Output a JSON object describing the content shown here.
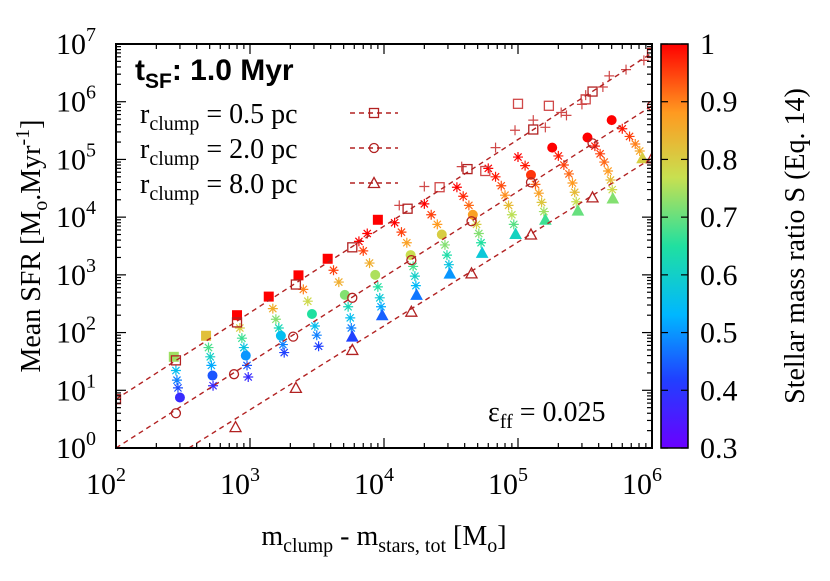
{
  "chart_data": {
    "type": "scatter",
    "annotation_title": "t",
    "annotation_title_sub": "SF",
    "annotation_title_rest": ": 1.0 Myr",
    "annotation_eff": "ε",
    "annotation_eff_sub": "ff",
    "annotation_eff_rest": " = 0.025",
    "xlabel_main": "m",
    "xlabel_sub1": "clump",
    "xlabel_mid": " - m",
    "xlabel_sub2": "stars, tot",
    "xlabel_end": " [M",
    "xlabel_sub3": "o",
    "xlabel_close": "]",
    "ylabel_main": "Mean SFR [M",
    "ylabel_sub": "o",
    "ylabel_mid": ".Myr",
    "ylabel_sup": "-1",
    "ylabel_close": "]",
    "colorbar_label": "Stellar mass ratio S (Eq. 14)",
    "xscale": "log",
    "yscale": "log",
    "xlim": [
      100,
      1000000
    ],
    "ylim": [
      1,
      10000000
    ],
    "colorbar_range": [
      0.3,
      1.0
    ],
    "x_tick_labels": [
      {
        "base": "10",
        "exp": "2"
      },
      {
        "base": "10",
        "exp": "3"
      },
      {
        "base": "10",
        "exp": "4"
      },
      {
        "base": "10",
        "exp": "5"
      },
      {
        "base": "10",
        "exp": "6"
      }
    ],
    "y_tick_labels": [
      {
        "base": "10",
        "exp": "0"
      },
      {
        "base": "10",
        "exp": "1"
      },
      {
        "base": "10",
        "exp": "2"
      },
      {
        "base": "10",
        "exp": "3"
      },
      {
        "base": "10",
        "exp": "4"
      },
      {
        "base": "10",
        "exp": "5"
      },
      {
        "base": "10",
        "exp": "6"
      },
      {
        "base": "10",
        "exp": "7"
      }
    ],
    "colorbar_ticks": [
      "0.3",
      "0.4",
      "0.5",
      "0.6",
      "0.7",
      "0.8",
      "0.9",
      "1"
    ],
    "series": [
      {
        "name": "r",
        "name_sub": "clump",
        "name_rest": " = 0.5 pc",
        "marker": "square",
        "color": "#b22222",
        "line_points": [
          [
            100,
            7
          ],
          [
            1000000,
            7000000
          ]
        ],
        "open_points": [
          [
            100,
            7
          ],
          [
            280,
            33
          ],
          [
            800,
            150
          ],
          [
            2200,
            680
          ],
          [
            5800,
            3000
          ],
          [
            15000,
            14000
          ],
          [
            42000,
            68000
          ],
          [
            130000,
            330000
          ],
          [
            360000,
            1500000
          ],
          [
            1000000,
            7000000
          ]
        ]
      },
      {
        "name": "r",
        "name_sub": "clump",
        "name_rest": " = 2.0 pc",
        "marker": "circle",
        "color": "#b22222",
        "line_points": [
          [
            100,
            1
          ],
          [
            1000000,
            850000
          ]
        ],
        "open_points": [
          [
            280,
            4
          ],
          [
            760,
            19
          ],
          [
            2100,
            85
          ],
          [
            5800,
            400
          ],
          [
            16000,
            1800
          ],
          [
            45000,
            8500
          ],
          [
            125000,
            40000
          ],
          [
            360000,
            190000
          ],
          [
            1000000,
            850000
          ]
        ]
      },
      {
        "name": "r",
        "name_sub": "clump",
        "name_rest": " = 8.0 pc",
        "marker": "triangle",
        "color": "#b22222",
        "line_points": [
          [
            350,
            1
          ],
          [
            1000000,
            105000
          ]
        ],
        "open_points": [
          [
            780,
            2.3
          ],
          [
            2200,
            11
          ],
          [
            5800,
            50
          ],
          [
            16000,
            230
          ],
          [
            45000,
            1060
          ],
          [
            125000,
            5000
          ],
          [
            360000,
            22000
          ],
          [
            1000000,
            105000
          ]
        ]
      }
    ],
    "colored_points": [
      {
        "x": 270,
        "y": 38,
        "s": 0.74,
        "m": "square"
      },
      {
        "x": 280,
        "y": 22,
        "s": 0.55,
        "m": "star"
      },
      {
        "x": 285,
        "y": 15,
        "s": 0.48,
        "m": "star"
      },
      {
        "x": 290,
        "y": 11,
        "s": 0.43,
        "m": "star"
      },
      {
        "x": 300,
        "y": 7.5,
        "s": 0.38,
        "m": "circle"
      },
      {
        "x": 470,
        "y": 88,
        "s": 0.82,
        "m": "square"
      },
      {
        "x": 490,
        "y": 55,
        "s": 0.68,
        "m": "star"
      },
      {
        "x": 505,
        "y": 38,
        "s": 0.6,
        "m": "star"
      },
      {
        "x": 515,
        "y": 27,
        "s": 0.52,
        "m": "star"
      },
      {
        "x": 525,
        "y": 18,
        "s": 0.44,
        "m": "circle"
      },
      {
        "x": 530,
        "y": 12,
        "s": 0.38,
        "m": "star"
      },
      {
        "x": 800,
        "y": 200,
        "s": 1.0,
        "m": "square"
      },
      {
        "x": 840,
        "y": 120,
        "s": 0.8,
        "m": "star"
      },
      {
        "x": 870,
        "y": 80,
        "s": 0.67,
        "m": "star"
      },
      {
        "x": 900,
        "y": 55,
        "s": 0.57,
        "m": "star"
      },
      {
        "x": 930,
        "y": 40,
        "s": 0.5,
        "m": "circle"
      },
      {
        "x": 950,
        "y": 27,
        "s": 0.44,
        "m": "star"
      },
      {
        "x": 970,
        "y": 17,
        "s": 0.38,
        "m": "star"
      },
      {
        "x": 1380,
        "y": 420,
        "s": 1.0,
        "m": "square"
      },
      {
        "x": 1480,
        "y": 260,
        "s": 0.85,
        "m": "star"
      },
      {
        "x": 1560,
        "y": 170,
        "s": 0.72,
        "m": "star"
      },
      {
        "x": 1640,
        "y": 120,
        "s": 0.62,
        "m": "star"
      },
      {
        "x": 1700,
        "y": 88,
        "s": 0.55,
        "m": "circle"
      },
      {
        "x": 1760,
        "y": 62,
        "s": 0.48,
        "m": "star"
      },
      {
        "x": 1800,
        "y": 45,
        "s": 0.42,
        "m": "star"
      },
      {
        "x": 2300,
        "y": 980,
        "s": 1.0,
        "m": "square"
      },
      {
        "x": 2500,
        "y": 560,
        "s": 0.9,
        "m": "star"
      },
      {
        "x": 2700,
        "y": 350,
        "s": 0.78,
        "m": "star"
      },
      {
        "x": 2900,
        "y": 210,
        "s": 0.65,
        "m": "circle"
      },
      {
        "x": 3050,
        "y": 130,
        "s": 0.55,
        "m": "star"
      },
      {
        "x": 3150,
        "y": 90,
        "s": 0.48,
        "m": "star"
      },
      {
        "x": 3250,
        "y": 58,
        "s": 0.42,
        "m": "star"
      },
      {
        "x": 3800,
        "y": 1900,
        "s": 1.0,
        "m": "square"
      },
      {
        "x": 4200,
        "y": 1200,
        "s": 0.95,
        "m": "star"
      },
      {
        "x": 4600,
        "y": 750,
        "s": 0.85,
        "m": "star"
      },
      {
        "x": 5100,
        "y": 450,
        "s": 0.72,
        "m": "circle"
      },
      {
        "x": 5400,
        "y": 280,
        "s": 0.62,
        "m": "star"
      },
      {
        "x": 5600,
        "y": 180,
        "s": 0.55,
        "m": "star"
      },
      {
        "x": 5700,
        "y": 120,
        "s": 0.48,
        "m": "star"
      },
      {
        "x": 5800,
        "y": 85,
        "s": 0.42,
        "m": "triangle"
      },
      {
        "x": 6500,
        "y": 3800,
        "s": 1.0,
        "m": "star"
      },
      {
        "x": 7500,
        "y": 5200,
        "s": 1.0,
        "m": "star"
      },
      {
        "x": 9000,
        "y": 9000,
        "s": 1.0,
        "m": "square"
      },
      {
        "x": 7000,
        "y": 2600,
        "s": 0.95,
        "m": "star"
      },
      {
        "x": 7800,
        "y": 1600,
        "s": 0.85,
        "m": "star"
      },
      {
        "x": 8600,
        "y": 1000,
        "s": 0.75,
        "m": "circle"
      },
      {
        "x": 9000,
        "y": 620,
        "s": 0.65,
        "m": "star"
      },
      {
        "x": 9300,
        "y": 400,
        "s": 0.58,
        "m": "star"
      },
      {
        "x": 9500,
        "y": 280,
        "s": 0.52,
        "m": "star"
      },
      {
        "x": 9700,
        "y": 200,
        "s": 0.45,
        "m": "triangle"
      },
      {
        "x": 12000,
        "y": 8000,
        "s": 1.0,
        "m": "star"
      },
      {
        "x": 13500,
        "y": 5500,
        "s": 0.95,
        "m": "star"
      },
      {
        "x": 14800,
        "y": 3600,
        "s": 0.87,
        "m": "star"
      },
      {
        "x": 15800,
        "y": 2200,
        "s": 0.77,
        "m": "circle"
      },
      {
        "x": 16500,
        "y": 1400,
        "s": 0.68,
        "m": "star"
      },
      {
        "x": 17000,
        "y": 950,
        "s": 0.6,
        "m": "star"
      },
      {
        "x": 17300,
        "y": 650,
        "s": 0.54,
        "m": "star"
      },
      {
        "x": 17500,
        "y": 450,
        "s": 0.47,
        "m": "triangle"
      },
      {
        "x": 20000,
        "y": 17000,
        "s": 1.0,
        "m": "star"
      },
      {
        "x": 22500,
        "y": 11000,
        "s": 0.95,
        "m": "star"
      },
      {
        "x": 25000,
        "y": 7500,
        "s": 0.88,
        "m": "star"
      },
      {
        "x": 27000,
        "y": 5000,
        "s": 0.8,
        "m": "circle"
      },
      {
        "x": 28500,
        "y": 3300,
        "s": 0.72,
        "m": "star"
      },
      {
        "x": 29500,
        "y": 2200,
        "s": 0.64,
        "m": "star"
      },
      {
        "x": 30500,
        "y": 1500,
        "s": 0.57,
        "m": "star"
      },
      {
        "x": 31000,
        "y": 1050,
        "s": 0.5,
        "m": "triangle"
      },
      {
        "x": 35000,
        "y": 33000,
        "s": 1.0,
        "m": "star"
      },
      {
        "x": 39000,
        "y": 23000,
        "s": 0.97,
        "m": "star"
      },
      {
        "x": 43000,
        "y": 16000,
        "s": 0.92,
        "m": "star"
      },
      {
        "x": 46000,
        "y": 11000,
        "s": 0.87,
        "m": "circle"
      },
      {
        "x": 49000,
        "y": 7500,
        "s": 0.8,
        "m": "star"
      },
      {
        "x": 51000,
        "y": 5200,
        "s": 0.72,
        "m": "star"
      },
      {
        "x": 53000,
        "y": 3600,
        "s": 0.65,
        "m": "star"
      },
      {
        "x": 54000,
        "y": 2400,
        "s": 0.58,
        "m": "triangle"
      },
      {
        "x": 60000,
        "y": 70000,
        "s": 1.0,
        "m": "star"
      },
      {
        "x": 68000,
        "y": 50000,
        "s": 0.98,
        "m": "star"
      },
      {
        "x": 75000,
        "y": 35000,
        "s": 0.94,
        "m": "star"
      },
      {
        "x": 80000,
        "y": 24000,
        "s": 0.89,
        "m": "star"
      },
      {
        "x": 85000,
        "y": 16000,
        "s": 0.83,
        "m": "star"
      },
      {
        "x": 90000,
        "y": 11000,
        "s": 0.76,
        "m": "star"
      },
      {
        "x": 93000,
        "y": 7500,
        "s": 0.69,
        "m": "star"
      },
      {
        "x": 96000,
        "y": 5100,
        "s": 0.61,
        "m": "triangle"
      },
      {
        "x": 100000,
        "y": 110000,
        "s": 1.0,
        "m": "star"
      },
      {
        "x": 113000,
        "y": 78000,
        "s": 0.98,
        "m": "star"
      },
      {
        "x": 125000,
        "y": 54000,
        "s": 0.96,
        "m": "circle"
      },
      {
        "x": 135000,
        "y": 37000,
        "s": 0.92,
        "m": "star"
      },
      {
        "x": 143000,
        "y": 26000,
        "s": 0.87,
        "m": "star"
      },
      {
        "x": 150000,
        "y": 18000,
        "s": 0.81,
        "m": "star"
      },
      {
        "x": 156000,
        "y": 12500,
        "s": 0.74,
        "m": "star"
      },
      {
        "x": 160000,
        "y": 9000,
        "s": 0.67,
        "m": "triangle"
      },
      {
        "x": 180000,
        "y": 160000,
        "s": 1.0,
        "m": "circle"
      },
      {
        "x": 200000,
        "y": 115000,
        "s": 0.98,
        "m": "star"
      },
      {
        "x": 220000,
        "y": 80000,
        "s": 0.95,
        "m": "star"
      },
      {
        "x": 240000,
        "y": 56000,
        "s": 0.92,
        "m": "star"
      },
      {
        "x": 255000,
        "y": 39000,
        "s": 0.88,
        "m": "star"
      },
      {
        "x": 265000,
        "y": 27000,
        "s": 0.83,
        "m": "star"
      },
      {
        "x": 272000,
        "y": 18500,
        "s": 0.77,
        "m": "star"
      },
      {
        "x": 280000,
        "y": 13000,
        "s": 0.7,
        "m": "triangle"
      },
      {
        "x": 330000,
        "y": 240000,
        "s": 1.0,
        "m": "circle"
      },
      {
        "x": 375000,
        "y": 170000,
        "s": 0.98,
        "m": "star"
      },
      {
        "x": 410000,
        "y": 125000,
        "s": 0.95,
        "m": "star"
      },
      {
        "x": 440000,
        "y": 90000,
        "s": 0.92,
        "m": "star"
      },
      {
        "x": 470000,
        "y": 63000,
        "s": 0.88,
        "m": "star"
      },
      {
        "x": 490000,
        "y": 44000,
        "s": 0.83,
        "m": "star"
      },
      {
        "x": 505000,
        "y": 30000,
        "s": 0.78,
        "m": "star"
      },
      {
        "x": 510000,
        "y": 21000,
        "s": 0.72,
        "m": "triangle"
      },
      {
        "x": 500000,
        "y": 480000,
        "s": 1.0,
        "m": "circle"
      },
      {
        "x": 600000,
        "y": 340000,
        "s": 0.98,
        "m": "star"
      },
      {
        "x": 680000,
        "y": 250000,
        "s": 0.95,
        "m": "star"
      },
      {
        "x": 750000,
        "y": 185000,
        "s": 0.9,
        "m": "star"
      },
      {
        "x": 810000,
        "y": 140000,
        "s": 0.86,
        "m": "star"
      },
      {
        "x": 850000,
        "y": 105000,
        "s": 0.8,
        "m": "triangle"
      }
    ],
    "open_pluses": [
      [
        13000,
        16000
      ],
      [
        20000,
        34000
      ],
      [
        38000,
        75000
      ],
      [
        68000,
        160000
      ],
      [
        95000,
        320000
      ],
      [
        130000,
        480000
      ],
      [
        160000,
        360000
      ],
      [
        210000,
        650000
      ],
      [
        230000,
        580000
      ],
      [
        300000,
        900000
      ],
      [
        320000,
        1300000
      ],
      [
        430000,
        1800000
      ],
      [
        480000,
        2800000
      ],
      [
        640000,
        3600000
      ],
      [
        870000,
        5200000
      ]
    ],
    "open_squares_extra": [
      [
        26000,
        33000
      ],
      [
        57000,
        63000
      ],
      [
        100000,
        920000
      ],
      [
        170000,
        850000
      ],
      [
        320000,
        1100000
      ]
    ]
  }
}
